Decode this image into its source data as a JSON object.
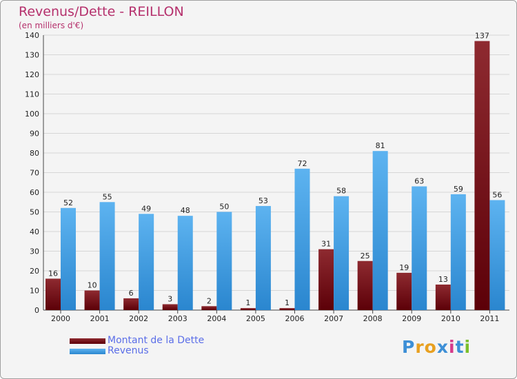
{
  "title": "Revenus/Dette - REILLON",
  "subtitle": "(en milliers d'€)",
  "chart_data": {
    "type": "bar",
    "title": "Revenus/Dette - REILLON",
    "ylabel": "(en milliers d'€)",
    "categories": [
      "2000",
      "2001",
      "2002",
      "2003",
      "2004",
      "2005",
      "2006",
      "2007",
      "2008",
      "2009",
      "2010",
      "2011"
    ],
    "series": [
      {
        "name": "Montant de la Dette",
        "color": "#7a1018",
        "values": [
          16,
          10,
          6,
          3,
          2,
          1,
          1,
          31,
          25,
          19,
          13,
          137
        ]
      },
      {
        "name": "Revenus",
        "color": "#3d9ee6",
        "values": [
          52,
          55,
          49,
          48,
          50,
          53,
          72,
          58,
          81,
          63,
          59,
          56
        ]
      }
    ],
    "ylim": [
      0,
      140
    ],
    "yticks": [
      0,
      10,
      20,
      30,
      40,
      50,
      60,
      70,
      80,
      90,
      100,
      110,
      120,
      130,
      140
    ],
    "grid": true,
    "legend": "bottom-left"
  },
  "legend": [
    {
      "label": "Montant de la Dette",
      "color": "#6b0d12"
    },
    {
      "label": "Revenus",
      "color": "#3d9ee6"
    }
  ],
  "logo": {
    "letters": [
      "P",
      "r",
      "o",
      "x",
      "i",
      "t",
      "i"
    ],
    "colors": [
      "#3d8fd6",
      "#e8a020",
      "#e8a020",
      "#3d8fd6",
      "#d63a8a",
      "#3d8fd6",
      "#7bbf2a"
    ]
  }
}
